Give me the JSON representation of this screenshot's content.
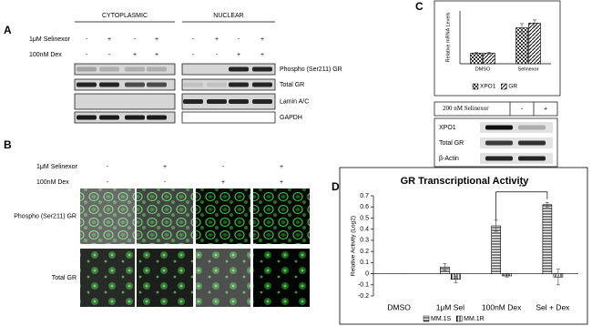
{
  "panel_a": {
    "letter": "A",
    "groups": [
      "CYTOPLASMIC",
      "NUCLEAR"
    ],
    "conditions": [
      {
        "label": "1μM Selinexor",
        "signs": [
          "-",
          "+",
          "-",
          "+"
        ]
      },
      {
        "label": "100nM Dex",
        "signs": [
          "-",
          "-",
          "+",
          "+"
        ]
      }
    ],
    "bands": [
      "Phospho (Ser211) GR",
      "Total GR",
      "Lamin A/C",
      "GAPDH"
    ]
  },
  "panel_b": {
    "letter": "B",
    "conditions": [
      {
        "label": "1μM Selinexor",
        "signs": [
          "-",
          "+",
          "-",
          "+"
        ]
      },
      {
        "label": "100nM Dex",
        "signs": [
          "-",
          "-",
          "+",
          "+"
        ]
      }
    ],
    "rows": [
      "Phospho (Ser211) GR",
      "Total GR"
    ]
  },
  "panel_c": {
    "letter": "C",
    "treatment": "200 nM Selinexor",
    "signs": [
      "-",
      "+"
    ],
    "bands": [
      "XPO1",
      "Total GR",
      "β-Actin"
    ]
  },
  "panel_d": {
    "letter": "D"
  },
  "chart_data": [
    {
      "type": "bar",
      "y_label": "Relative mRNA Levels",
      "categories": [
        "DMSO",
        "Selinexor"
      ],
      "ylim": [
        0,
        5
      ],
      "series": [
        {
          "name": "XPO1",
          "color": "#000000",
          "pattern": "check",
          "values": [
            1,
            3.4
          ],
          "errors": [
            0.08,
            0.4
          ]
        },
        {
          "name": "GR",
          "color": "#000000",
          "pattern": "diagonal",
          "values": [
            1,
            3.85
          ],
          "errors": [
            0.08,
            0.3
          ]
        }
      ]
    },
    {
      "type": "bar",
      "title": "GR Transcriptional Activity",
      "y_label": "Relative Activity (Log2)",
      "categories": [
        "DMSO",
        "1μM Sel",
        "100nM Dex",
        "Sel + Dex"
      ],
      "ylim": [
        -0.2,
        0.7
      ],
      "yticks": [
        -0.2,
        -0.1,
        0,
        0.1,
        0.2,
        0.3,
        0.4,
        0.5,
        0.6,
        0.7
      ],
      "annotation": "**",
      "series": [
        {
          "name": "MM.1S",
          "color": "#000000",
          "pattern": "horizontal",
          "values": [
            0,
            0.06,
            0.43,
            0.62
          ],
          "errors": [
            0,
            0.03,
            0.05,
            0.02
          ]
        },
        {
          "name": "MM.1R",
          "color": "#000000",
          "pattern": "vertical",
          "values": [
            0,
            -0.05,
            -0.02,
            -0.03
          ],
          "errors": [
            0,
            0.03,
            0.01,
            0.07
          ]
        }
      ]
    }
  ]
}
